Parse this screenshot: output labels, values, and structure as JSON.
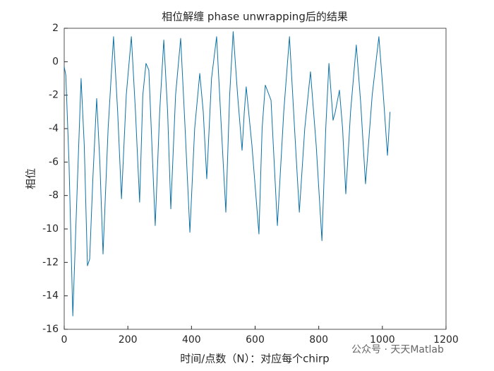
{
  "chart_data": {
    "type": "line",
    "title": "相位解缠  phase unwrapping后的结果",
    "x_label": "时间/点数（N）：对应每个chirp",
    "y_label": "相位",
    "annotation": "公众号 · 天天Matlab",
    "x": [
      0,
      5,
      15,
      27,
      40,
      53,
      63,
      73,
      80,
      90,
      102,
      112,
      122,
      138,
      155,
      168,
      180,
      195,
      211,
      224,
      237,
      247,
      257,
      266,
      286,
      300,
      313,
      325,
      335,
      350,
      366,
      380,
      395,
      410,
      426,
      437,
      448,
      463,
      479,
      494,
      508,
      520,
      531,
      545,
      559,
      566,
      572,
      590,
      612,
      622,
      632,
      650,
      670,
      690,
      708,
      724,
      739,
      756,
      774,
      792,
      810,
      822,
      832,
      845,
      852,
      865,
      875,
      885,
      900,
      918,
      932,
      947,
      968,
      989,
      1003,
      1016,
      1024
    ],
    "series": [
      {
        "name": "phase",
        "color": "#0e72a6",
        "values": [
          -0.3,
          -0.8,
          -6,
          -15.2,
          -8,
          -1,
          -5,
          -12.2,
          -11.8,
          -7,
          -2.2,
          -6,
          -11.5,
          -4,
          1.5,
          -3,
          -8.2,
          -2,
          1.5,
          -3,
          -8.4,
          -2,
          -0.1,
          -0.5,
          -9.8,
          -3,
          1.3,
          -3,
          -8.8,
          -2,
          1.4,
          -4,
          -10.2,
          -4,
          -0.7,
          -3,
          -7,
          -1,
          1.5,
          -4,
          -9,
          -2,
          1.8,
          -2,
          -5.3,
          -3,
          -1.5,
          -5,
          -10.3,
          -4,
          -1.4,
          -2.3,
          -9.8,
          -3,
          1.5,
          -4,
          -9,
          -4,
          -0.6,
          -5,
          -10.7,
          -4,
          -0.1,
          -3.5,
          -3,
          -1.7,
          -4,
          -7.9,
          -3,
          1.0,
          -2.5,
          -7.3,
          -2,
          1.5,
          -2,
          -5.6,
          -3
        ]
      }
    ],
    "xlim": [
      0,
      1200
    ],
    "xticks": [
      0,
      200,
      400,
      600,
      800,
      1000,
      1200
    ],
    "ylim": [
      -16,
      2
    ],
    "yticks": [
      -16,
      -14,
      -12,
      -10,
      -8,
      -6,
      -4,
      -2,
      0,
      2
    ],
    "grid": false
  }
}
